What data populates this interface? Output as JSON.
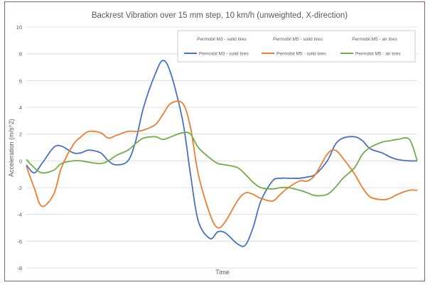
{
  "chart_data": {
    "type": "line",
    "title": "Backrest Vibration over 15 mm step, 10 km/h (unweighted, X-direction)",
    "xlabel": "Time",
    "ylabel": "Acceleration (m/s^2)",
    "ylim": [
      -8,
      10
    ],
    "yticks": [
      10,
      8,
      6,
      4,
      2,
      0,
      -2,
      -4,
      -6,
      -8
    ],
    "grid": true,
    "legend_position": "top-right",
    "legend_header": [
      "Permobil M3 - solid tires",
      "Permobil M5 - solid tires",
      "Permobil M5 - air tires"
    ],
    "x": [
      0,
      2,
      4,
      7,
      9,
      12,
      14,
      16,
      19,
      21,
      23,
      26,
      28,
      30,
      33,
      35,
      37,
      40,
      42,
      44,
      47,
      49,
      51,
      54,
      56,
      58,
      60,
      63,
      65,
      67,
      70,
      72,
      74,
      77,
      79,
      81,
      84,
      86,
      88,
      91,
      93,
      95,
      98,
      100
    ],
    "series": [
      {
        "name": "Permobil M3 - solid tires",
        "color": "#4472c4",
        "values": [
          -0.3,
          -0.9,
          -0.2,
          1.0,
          1.1,
          0.6,
          0.6,
          0.8,
          0.6,
          0.0,
          -0.3,
          0.0,
          1.5,
          4.0,
          6.5,
          7.5,
          6.5,
          3.0,
          -1.0,
          -4.5,
          -5.8,
          -5.3,
          -5.4,
          -6.2,
          -6.3,
          -5.0,
          -3.0,
          -1.5,
          -1.3,
          -1.3,
          -1.3,
          -1.2,
          -1.0,
          0.0,
          1.2,
          1.7,
          1.8,
          1.5,
          0.9,
          0.6,
          0.3,
          0.1,
          0.0,
          0.0
        ]
      },
      {
        "name": "Permobil M5 - solid tires",
        "color": "#ed7d31",
        "values": [
          -0.4,
          -2.0,
          -3.4,
          -2.5,
          -0.5,
          1.2,
          1.8,
          2.2,
          2.1,
          1.7,
          1.9,
          2.2,
          2.2,
          2.3,
          2.7,
          3.5,
          4.3,
          4.3,
          2.5,
          -1.0,
          -4.0,
          -5.0,
          -4.5,
          -3.0,
          -2.4,
          -2.5,
          -2.8,
          -3.0,
          -2.5,
          -2.0,
          -1.5,
          -1.5,
          -1.0,
          0.5,
          0.8,
          0.2,
          -1.0,
          -2.0,
          -2.7,
          -2.9,
          -2.8,
          -2.5,
          -2.2,
          -2.2
        ]
      },
      {
        "name": "Permobil M5 - air tires",
        "color": "#70ad47",
        "values": [
          0.1,
          -0.5,
          -0.9,
          -0.7,
          -0.2,
          0.0,
          0.0,
          -0.1,
          -0.2,
          0.0,
          0.4,
          0.8,
          1.3,
          1.7,
          1.8,
          1.6,
          1.8,
          2.1,
          2.0,
          1.0,
          0.2,
          -0.2,
          -0.3,
          -0.5,
          -1.0,
          -1.6,
          -2.0,
          -2.1,
          -2.0,
          -2.0,
          -2.2,
          -2.4,
          -2.6,
          -2.5,
          -2.0,
          -1.3,
          -0.5,
          0.5,
          1.0,
          1.4,
          1.5,
          1.6,
          1.6,
          0.0
        ]
      }
    ]
  }
}
